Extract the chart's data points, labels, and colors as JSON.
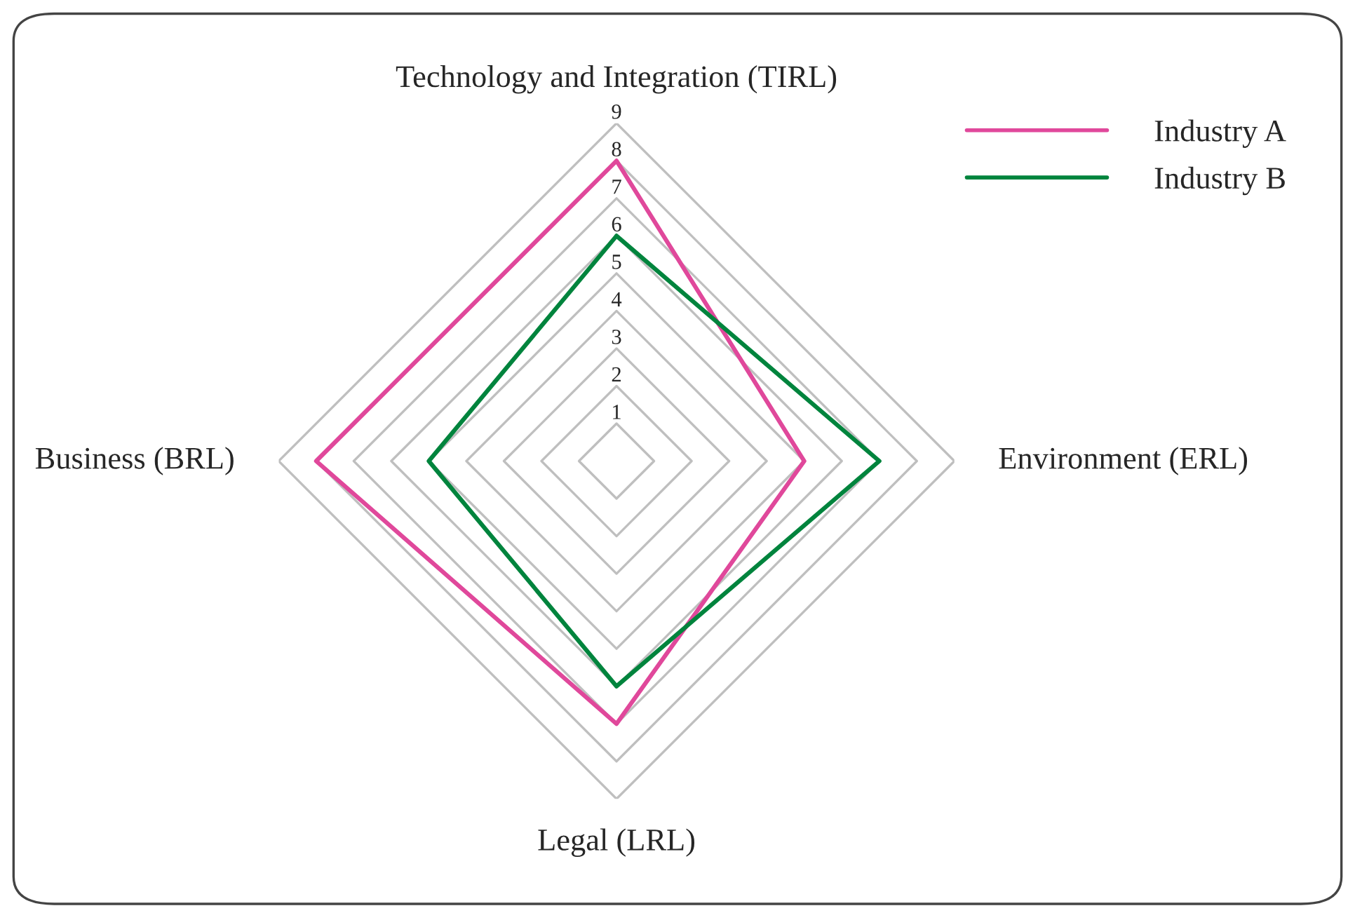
{
  "chart_data": {
    "type": "radar",
    "categories": [
      "Technology and Integration (TIRL)",
      "Environment (ERL)",
      "Legal (LRL)",
      "Business (BRL)"
    ],
    "series": [
      {
        "name": "Industry A",
        "color": "#e0489b",
        "values": [
          8,
          5,
          7,
          8
        ]
      },
      {
        "name": "Industry B",
        "color": "#00843d",
        "values": [
          6,
          7,
          6,
          5
        ]
      }
    ],
    "ylim": [
      0,
      9
    ],
    "yticks": [
      1,
      2,
      3,
      4,
      5,
      6,
      7,
      8,
      9
    ],
    "grid": true,
    "legend": "top right",
    "marker": "none",
    "line_style": "solid"
  }
}
